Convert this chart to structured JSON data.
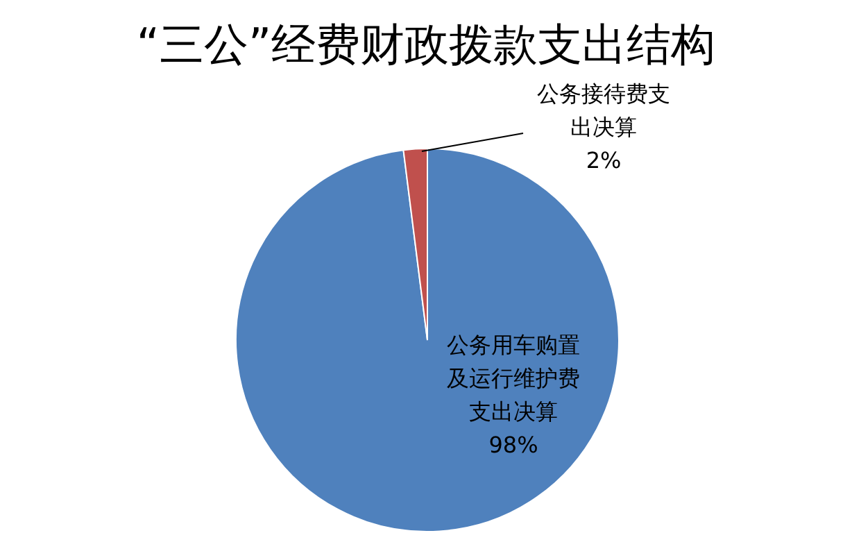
{
  "chart_data": {
    "type": "pie",
    "title": "“三公”经费财政拨款支出结构",
    "categories": [
      "公务用车购置及运行维护费支出决算",
      "公务接待费支出决算"
    ],
    "values": [
      98,
      2
    ],
    "colors": [
      "#4f81bd",
      "#c0504d"
    ],
    "value_labels": [
      "98%",
      "2%"
    ]
  }
}
